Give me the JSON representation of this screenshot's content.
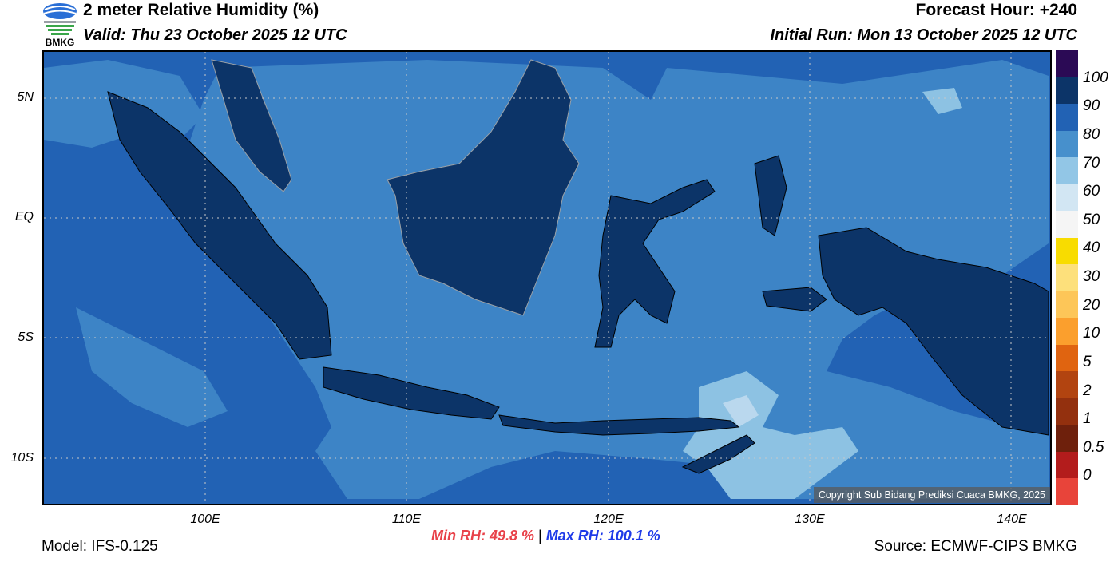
{
  "header": {
    "title": "2 meter Relative Humidity (%)",
    "valid": "Valid: Thu 23 October 2025 12 UTC",
    "forecast_hour": "Forecast Hour: +240",
    "initial_run": "Initial Run: Mon 13 October 2025 12 UTC"
  },
  "logo": {
    "text": "BMKG"
  },
  "map": {
    "lat_labels": [
      "5N",
      "EQ",
      "5S",
      "10S"
    ],
    "lon_labels": [
      "100E",
      "110E",
      "120E",
      "130E",
      "140E"
    ],
    "copyright": "Copyright Sub Bidang Prediksi Cuaca BMKG, 2025",
    "colors": {
      "ocean_90": "#2262b4",
      "ocean_80": "#3d84c6",
      "land_100": "#0c3468",
      "rh_70": "#8dc2e3",
      "rh_60": "#bad8ee"
    }
  },
  "colorbar": {
    "labels": [
      "100",
      "90",
      "80",
      "70",
      "60",
      "50",
      "40",
      "30",
      "20",
      "10",
      "5",
      "2",
      "1",
      "0.5",
      "0"
    ],
    "colors": [
      "#2b0a55",
      "#0c3468",
      "#2262b4",
      "#4790cc",
      "#92c6e6",
      "#d2e6f3",
      "#f5f5f5",
      "#f8dc00",
      "#fde07b",
      "#fdc658",
      "#fb9f2d",
      "#e06410",
      "#b24410",
      "#93300e",
      "#6e200c",
      "#b31c1c",
      "#e8443a"
    ]
  },
  "footer": {
    "model": "Model: IFS-0.125",
    "min_rh": "Min RH:  49.8 %",
    "separator": "|",
    "max_rh": "Max RH: 100.1 %",
    "source": "Source: ECMWF-CIPS BMKG"
  }
}
